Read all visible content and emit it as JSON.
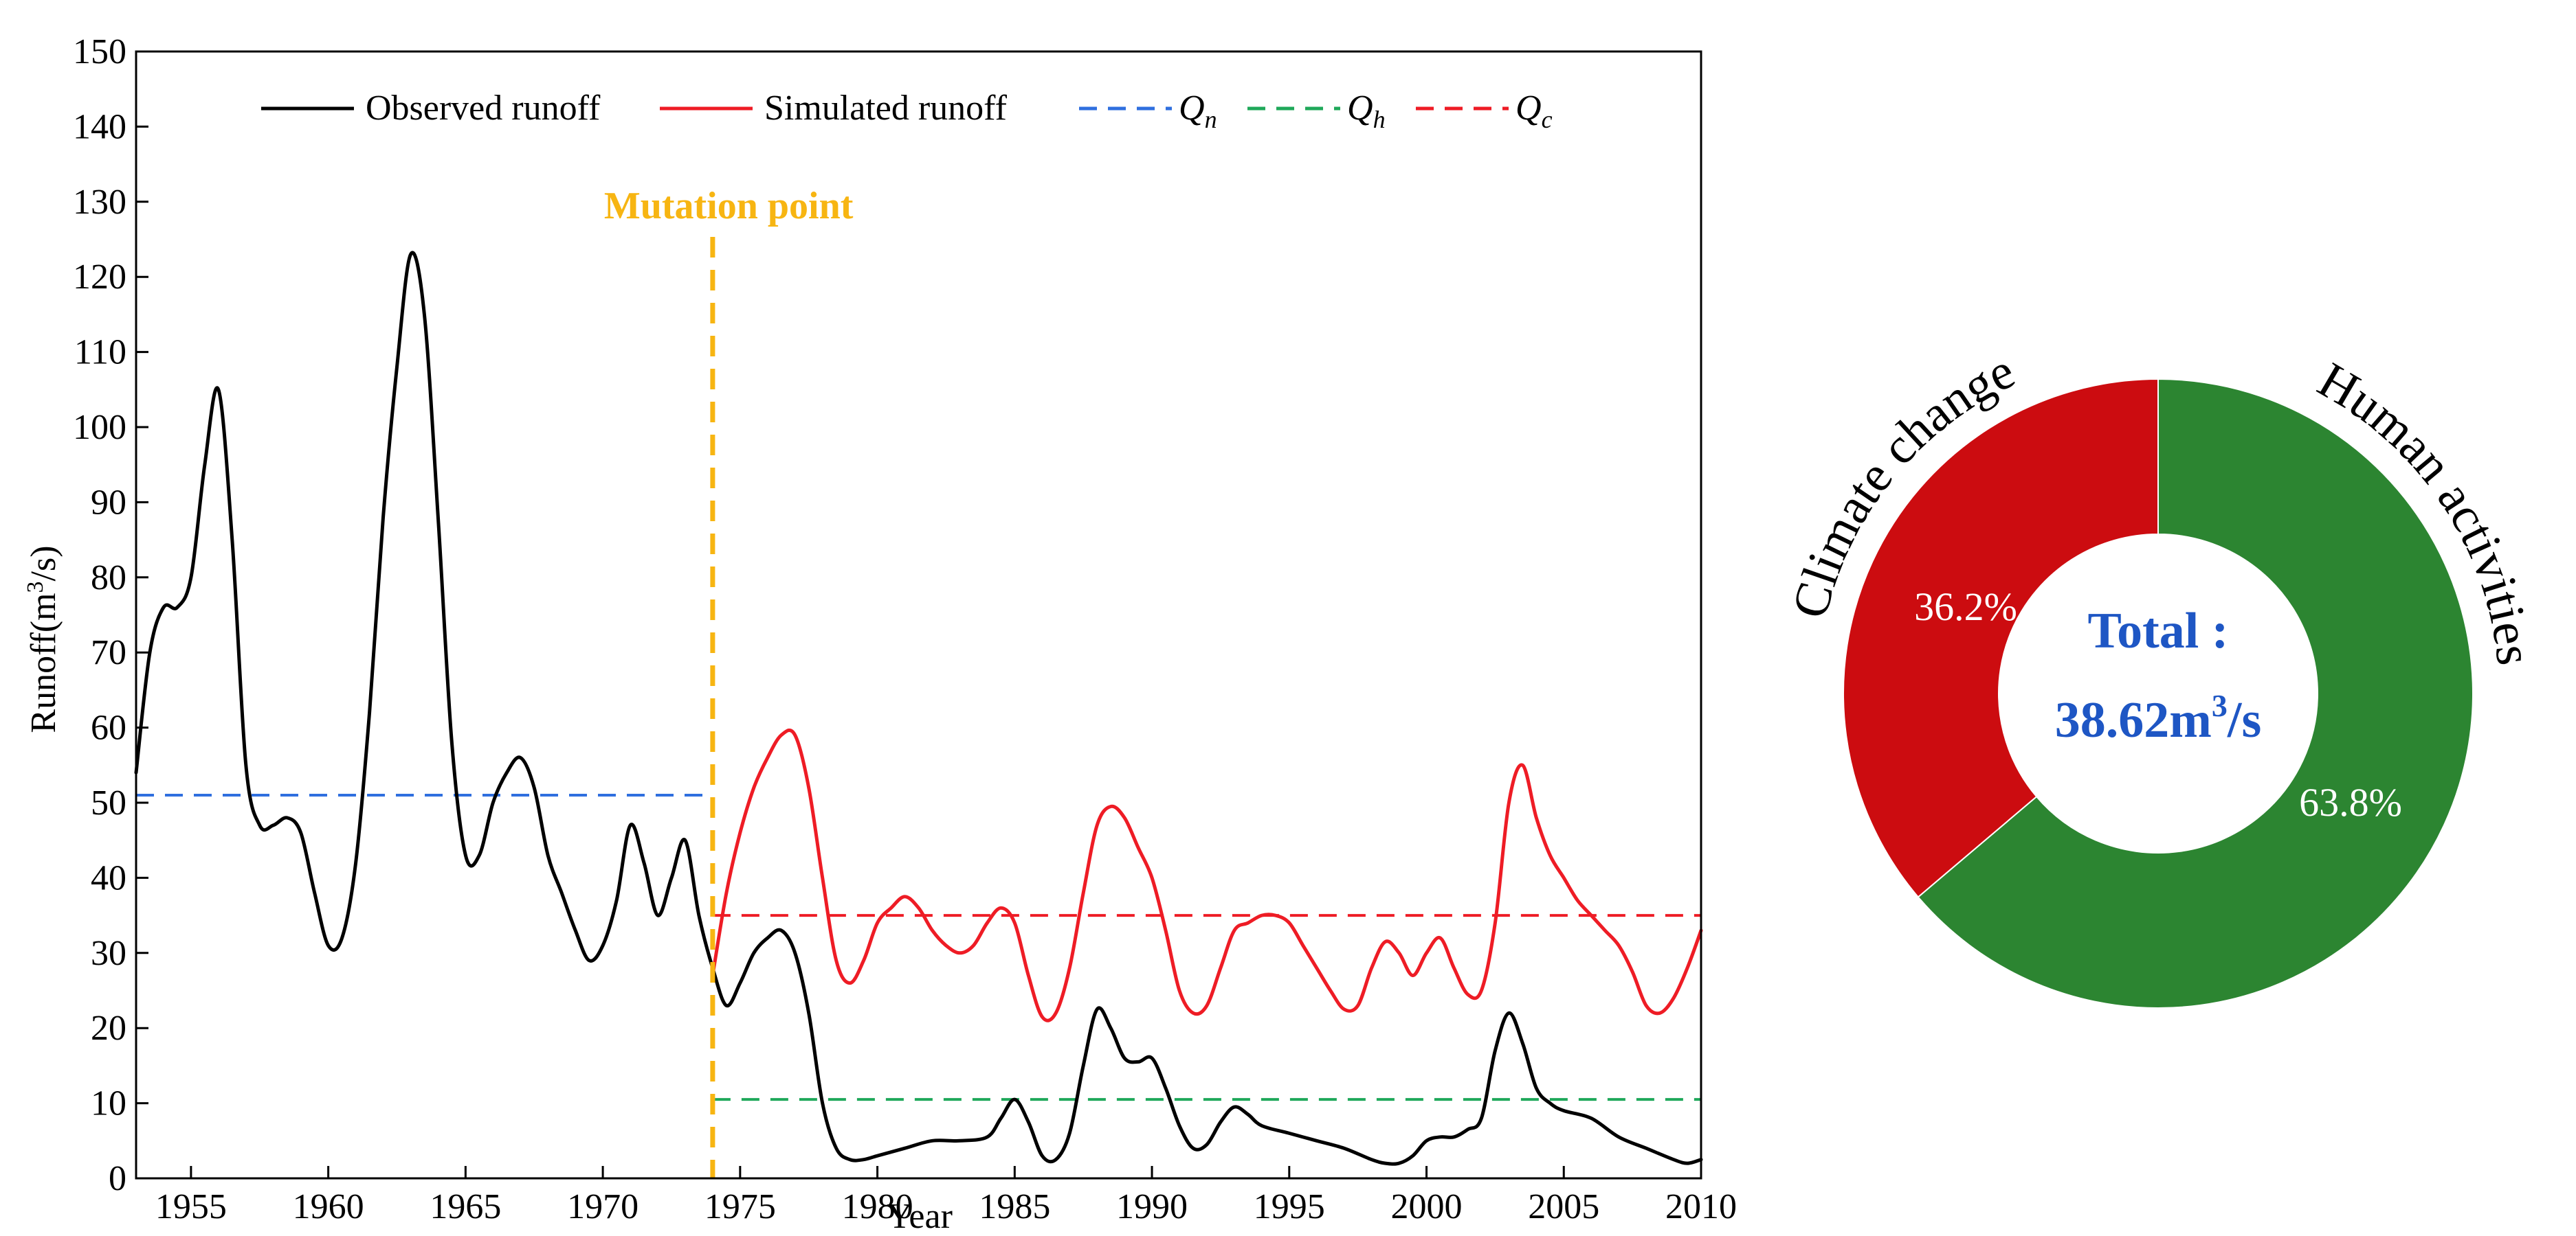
{
  "chart_data": [
    {
      "type": "line",
      "xlabel": "Year",
      "ylabel": "Runoff(m",
      "ylabel_sup": "3",
      "ylabel_tail": "/s)",
      "xlim": [
        1953,
        2010
      ],
      "ylim": [
        0,
        150
      ],
      "xticks": [
        1955,
        1960,
        1965,
        1970,
        1975,
        1980,
        1985,
        1990,
        1995,
        2000,
        2005,
        2010
      ],
      "yticks": [
        0,
        10,
        20,
        30,
        40,
        50,
        60,
        70,
        80,
        90,
        100,
        110,
        120,
        130,
        140,
        150
      ],
      "legend": {
        "position": "top",
        "entries": [
          {
            "label": "Observed runoff",
            "color": "#000000",
            "style": "solid"
          },
          {
            "label": "Simulated runoff",
            "color": "#ee1c25",
            "style": "solid"
          },
          {
            "label": "Q",
            "sub": "n",
            "color": "#2f6fdf",
            "style": "dashed"
          },
          {
            "label": "Q",
            "sub": "h",
            "color": "#1fa85a",
            "style": "dashed"
          },
          {
            "label": "Q",
            "sub": "c",
            "color": "#ee1c25",
            "style": "dashed"
          }
        ]
      },
      "series": [
        {
          "name": "Observed runoff",
          "color": "#000000",
          "x": [
            1953,
            1953.5,
            1954,
            1954.5,
            1955,
            1955.5,
            1956,
            1956.5,
            1957,
            1957.5,
            1958,
            1958.5,
            1959,
            1959.5,
            1960,
            1960.5,
            1961,
            1961.5,
            1962,
            1962.5,
            1963,
            1963.5,
            1964,
            1964.5,
            1965,
            1965.5,
            1966,
            1966.5,
            1967,
            1967.5,
            1968,
            1968.5,
            1969,
            1969.5,
            1970,
            1970.5,
            1971,
            1971.5,
            1972,
            1972.5,
            1973,
            1973.5,
            1974,
            1974.5,
            1975,
            1975.5,
            1976,
            1976.5,
            1977,
            1977.5,
            1978,
            1978.5,
            1979,
            1979.5,
            1980,
            1981,
            1982,
            1983,
            1984,
            1984.5,
            1985,
            1985.5,
            1986,
            1986.5,
            1987,
            1987.5,
            1988,
            1988.5,
            1989,
            1989.5,
            1990,
            1990.5,
            1991,
            1991.5,
            1992,
            1992.5,
            1993,
            1993.5,
            1994,
            1995,
            1996,
            1997,
            1998,
            1998.5,
            1999,
            1999.5,
            2000,
            2000.5,
            2001,
            2001.5,
            2002,
            2002.5,
            2003,
            2003.5,
            2004,
            2004.5,
            2005,
            2006,
            2007,
            2008,
            2009,
            2009.5,
            2010
          ],
          "values": [
            54,
            70,
            76,
            76,
            80,
            95,
            105,
            85,
            55,
            47,
            47,
            48,
            46,
            38,
            31,
            32,
            42,
            62,
            88,
            108,
            123,
            115,
            88,
            58,
            43,
            43,
            50,
            54,
            56,
            52,
            43,
            38,
            33,
            29,
            31,
            37,
            47,
            42,
            35,
            40,
            45,
            35,
            28,
            23,
            26,
            30,
            32,
            33,
            30,
            22,
            10,
            4,
            2.5,
            2.5,
            3,
            4,
            5,
            5,
            5.5,
            8,
            10.5,
            7.5,
            3,
            2.5,
            6,
            15,
            22.5,
            20,
            16,
            15.5,
            16,
            12,
            7,
            4,
            4.5,
            7.5,
            9.5,
            8.5,
            7,
            6,
            5,
            4,
            2.5,
            2,
            2,
            3,
            5,
            5.5,
            5.5,
            6.5,
            8,
            17,
            22,
            18,
            12,
            10,
            9,
            8,
            5.5,
            4,
            2.5,
            2,
            2.5
          ]
        },
        {
          "name": "Simulated runoff",
          "color": "#ee1c25",
          "x": [
            1974,
            1974.5,
            1975,
            1975.5,
            1976,
            1976.5,
            1977,
            1977.5,
            1978,
            1978.5,
            1979,
            1979.5,
            1980,
            1980.5,
            1981,
            1981.5,
            1982,
            1982.5,
            1983,
            1983.5,
            1984,
            1984.5,
            1985,
            1985.5,
            1986,
            1986.5,
            1987,
            1987.5,
            1988,
            1988.5,
            1989,
            1989.5,
            1990,
            1990.5,
            1991,
            1991.5,
            1992,
            1992.5,
            1993,
            1993.5,
            1994,
            1994.5,
            1995,
            1995.5,
            1996,
            1996.5,
            1997,
            1997.5,
            1998,
            1998.5,
            1999,
            1999.5,
            2000,
            2000.5,
            2001,
            2001.5,
            2002,
            2002.5,
            2003,
            2003.5,
            2004,
            2004.5,
            2005,
            2005.5,
            2006,
            2006.5,
            2007,
            2007.5,
            2008,
            2008.5,
            2009,
            2009.5,
            2010
          ],
          "values": [
            27,
            38,
            46,
            52,
            56,
            59,
            59,
            52,
            40,
            29,
            26,
            29,
            34,
            36,
            37.5,
            36,
            33,
            31,
            30,
            31,
            34,
            36,
            34,
            27,
            21.5,
            22,
            28,
            38,
            47,
            49.5,
            48,
            44,
            40,
            33,
            25,
            22,
            23,
            28,
            33,
            34,
            35,
            35,
            34,
            31,
            28,
            25,
            22.5,
            23,
            28,
            31.5,
            30,
            27,
            30,
            32,
            28,
            24.5,
            25,
            34,
            50,
            55,
            48,
            43,
            40,
            37,
            35,
            33,
            31,
            27.5,
            23,
            22,
            24,
            28,
            33
          ]
        }
      ],
      "reference_lines": [
        {
          "name": "Q_n",
          "color": "#2f6fdf",
          "value": 51,
          "x_range": [
            1953,
            1974
          ]
        },
        {
          "name": "Q_h",
          "color": "#1fa85a",
          "value": 10.5,
          "x_range": [
            1974,
            2010
          ]
        },
        {
          "name": "Q_c",
          "color": "#ee1c25",
          "value": 35,
          "x_range": [
            1974,
            2010
          ]
        }
      ],
      "mutation": {
        "label": "Mutation point",
        "year": 1974,
        "color": "#f7b512"
      }
    },
    {
      "type": "pie",
      "variant": "donut",
      "center_label_line1": "Total :",
      "center_label_value": "38.62m",
      "center_label_sup": "3",
      "center_label_tail": "/s",
      "center_label_color": "#1e56c4",
      "slices": [
        {
          "label": "Human activities",
          "value": 63.8,
          "pct_label": "63.8%",
          "color": "#2c8531"
        },
        {
          "label": "Climate change",
          "value": 36.2,
          "pct_label": "36.2%",
          "color": "#cc0c10"
        }
      ]
    }
  ]
}
